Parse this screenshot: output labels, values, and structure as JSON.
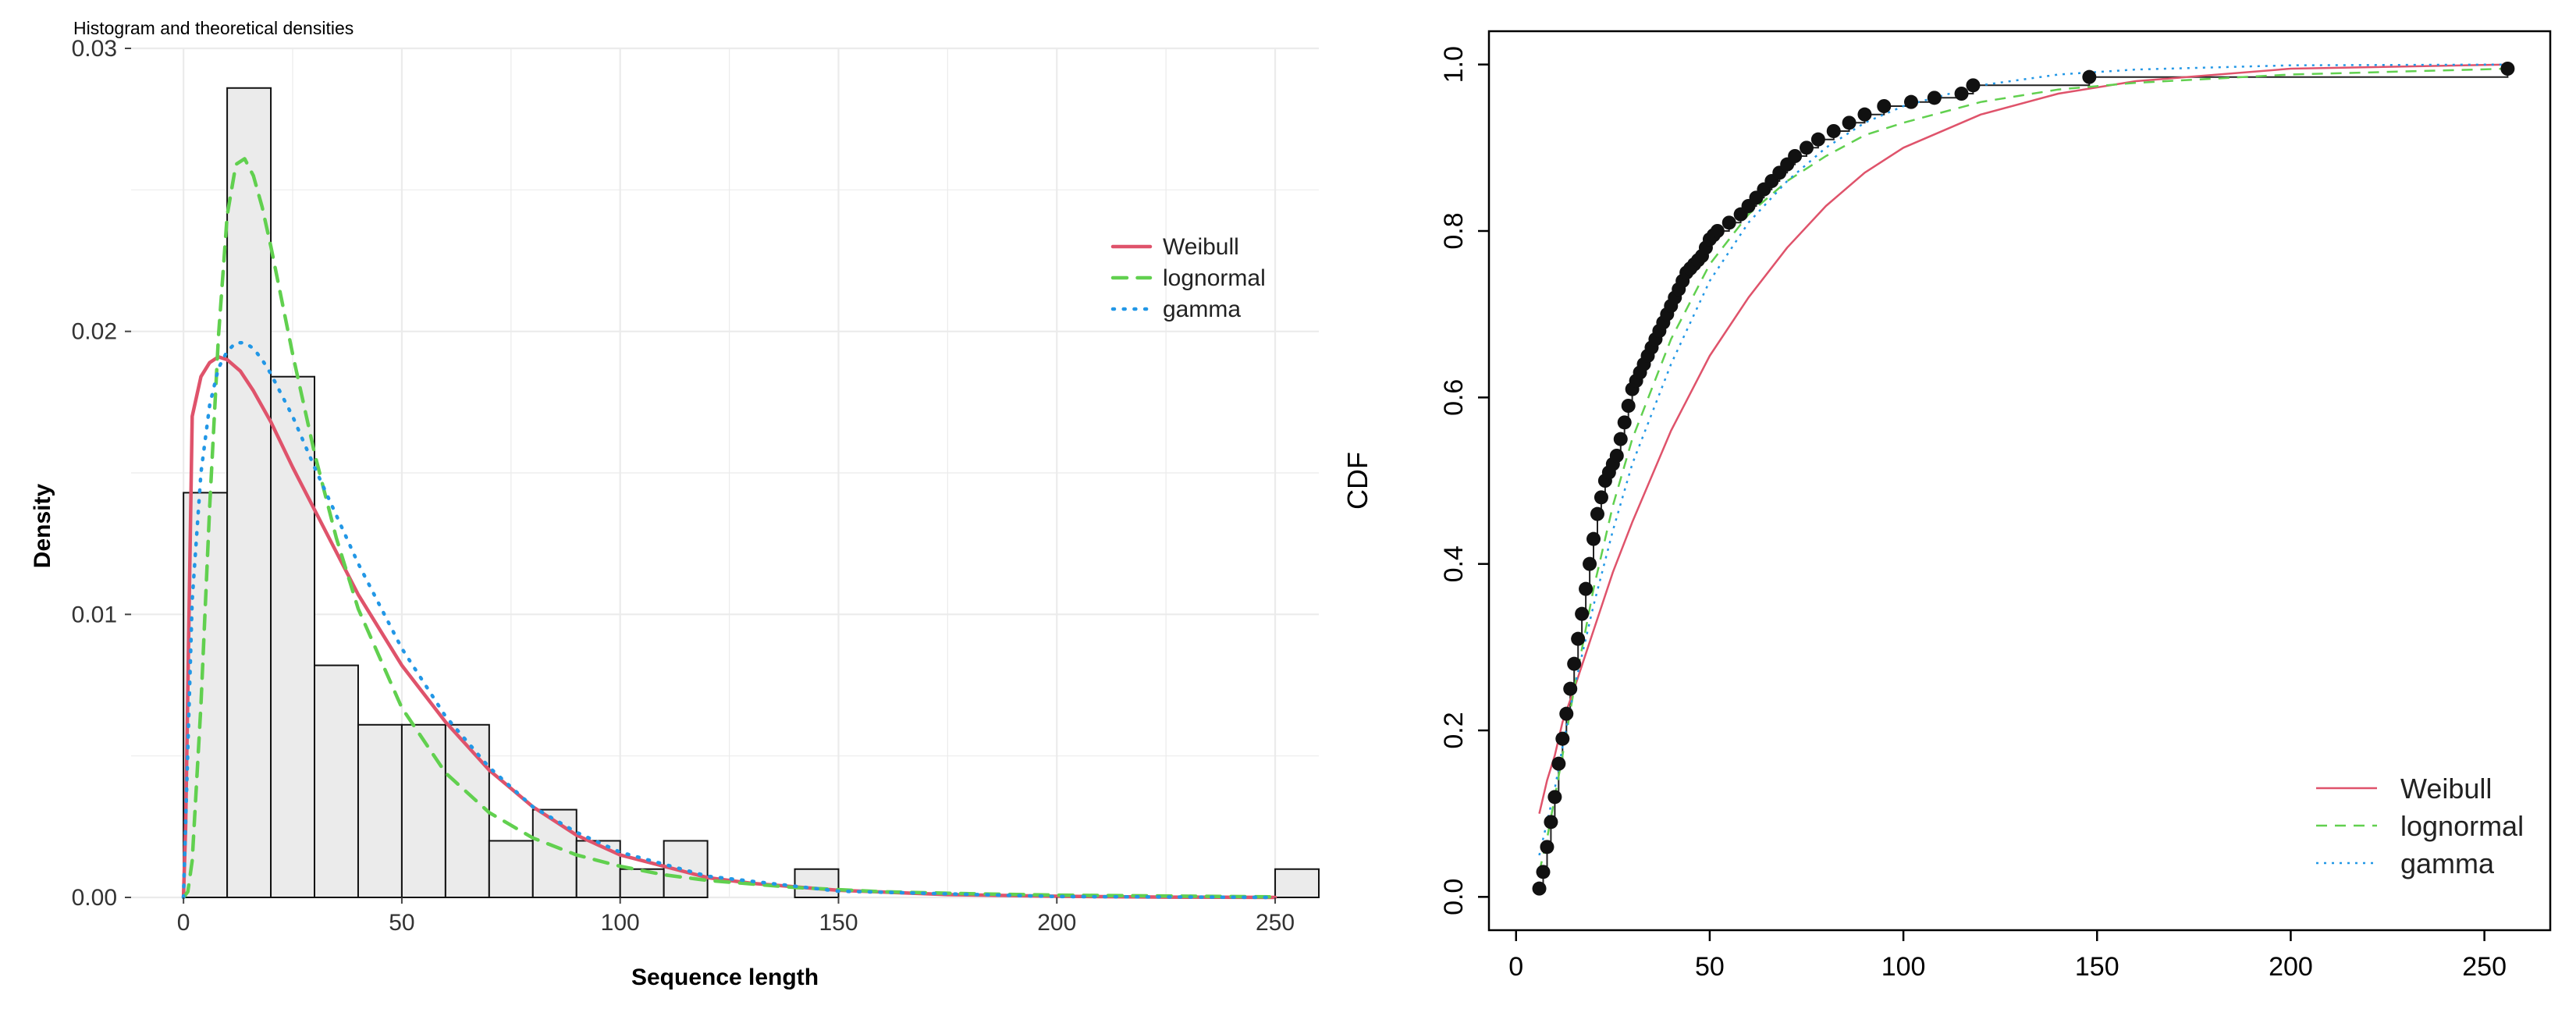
{
  "colors": {
    "weibull": "#df536b",
    "lognormal": "#61d04f",
    "gamma": "#2297e6",
    "bar_fill": "#ebebeb",
    "grid": "#ebebeb"
  },
  "chart_data": [
    {
      "type": "bar",
      "title": "Histogram and theoretical densities",
      "xlabel": "Sequence length",
      "ylabel": "Density",
      "xlim": [
        -12,
        260
      ],
      "ylim": [
        0,
        0.03
      ],
      "x_ticks": [
        0,
        50,
        100,
        150,
        200,
        250
      ],
      "x_tick_labels": [
        "0",
        "50",
        "100",
        "150",
        "200",
        "250"
      ],
      "y_ticks": [
        0,
        0.01,
        0.02,
        0.03
      ],
      "y_tick_labels": [
        "0.00",
        "0.01",
        "0.02",
        "0.03"
      ],
      "grid": true,
      "legend_position": "top-right",
      "bins": [
        {
          "x0": 0,
          "x1": 10,
          "density": 0.0143
        },
        {
          "x0": 10,
          "x1": 20,
          "density": 0.0286
        },
        {
          "x0": 20,
          "x1": 30,
          "density": 0.0184
        },
        {
          "x0": 30,
          "x1": 40,
          "density": 0.0082
        },
        {
          "x0": 40,
          "x1": 50,
          "density": 0.0061
        },
        {
          "x0": 50,
          "x1": 60,
          "density": 0.0061
        },
        {
          "x0": 60,
          "x1": 70,
          "density": 0.0061
        },
        {
          "x0": 70,
          "x1": 80,
          "density": 0.002
        },
        {
          "x0": 80,
          "x1": 90,
          "density": 0.0031
        },
        {
          "x0": 90,
          "x1": 100,
          "density": 0.002
        },
        {
          "x0": 100,
          "x1": 110,
          "density": 0.001
        },
        {
          "x0": 110,
          "x1": 120,
          "density": 0.002
        },
        {
          "x0": 120,
          "x1": 130,
          "density": 0.0
        },
        {
          "x0": 130,
          "x1": 140,
          "density": 0.0
        },
        {
          "x0": 140,
          "x1": 150,
          "density": 0.001
        },
        {
          "x0": 150,
          "x1": 160,
          "density": 0.0
        },
        {
          "x0": 160,
          "x1": 170,
          "density": 0.0
        },
        {
          "x0": 170,
          "x1": 180,
          "density": 0.0
        },
        {
          "x0": 180,
          "x1": 190,
          "density": 0.0
        },
        {
          "x0": 190,
          "x1": 200,
          "density": 0.0
        },
        {
          "x0": 200,
          "x1": 210,
          "density": 0.0
        },
        {
          "x0": 210,
          "x1": 220,
          "density": 0.0
        },
        {
          "x0": 220,
          "x1": 230,
          "density": 0.0
        },
        {
          "x0": 230,
          "x1": 240,
          "density": 0.0
        },
        {
          "x0": 240,
          "x1": 250,
          "density": 0.0
        },
        {
          "x0": 250,
          "x1": 260,
          "density": 0.001
        }
      ],
      "series": [
        {
          "name": "Weibull",
          "color": "#df536b",
          "dash": "solid",
          "x": [
            0,
            0.5,
            2,
            4,
            6,
            8,
            10,
            13,
            16,
            20,
            25,
            30,
            35,
            40,
            50,
            60,
            70,
            80,
            90,
            100,
            110,
            120,
            130,
            150,
            175,
            200,
            225,
            250
          ],
          "y": [
            0,
            0.0025,
            0.017,
            0.0184,
            0.0189,
            0.0191,
            0.019,
            0.0186,
            0.0179,
            0.0168,
            0.0152,
            0.0137,
            0.0122,
            0.0107,
            0.0082,
            0.0062,
            0.0045,
            0.0032,
            0.0022,
            0.0015,
            0.0011,
            0.0007,
            0.0005,
            0.00025,
            0.0001,
            4e-05,
            1e-05,
            0.0
          ]
        },
        {
          "name": "lognormal",
          "color": "#61d04f",
          "dash": "dashed",
          "x": [
            0,
            1,
            2,
            4,
            6,
            8,
            10,
            12,
            14,
            16,
            18,
            20,
            25,
            30,
            35,
            40,
            50,
            60,
            70,
            80,
            90,
            100,
            110,
            120,
            140,
            160,
            180,
            200,
            250
          ],
          "y": [
            0,
            0.0002,
            0.0013,
            0.0068,
            0.0138,
            0.0198,
            0.0241,
            0.0259,
            0.0261,
            0.0255,
            0.0244,
            0.023,
            0.0192,
            0.0157,
            0.0127,
            0.0102,
            0.0067,
            0.0044,
            0.003,
            0.0021,
            0.0015,
            0.0011,
            0.0008,
            0.0006,
            0.00035,
            0.0002,
            0.00013,
            8e-05,
            2e-05
          ]
        },
        {
          "name": "gamma",
          "color": "#2297e6",
          "dash": "dotted",
          "x": [
            0,
            2,
            4,
            6,
            8,
            10,
            12,
            14,
            16,
            18,
            20,
            25,
            30,
            40,
            50,
            60,
            70,
            80,
            90,
            100,
            120,
            150,
            200,
            250
          ],
          "y": [
            0,
            0.0105,
            0.015,
            0.0174,
            0.0187,
            0.0193,
            0.0196,
            0.0196,
            0.0194,
            0.019,
            0.0185,
            0.017,
            0.0152,
            0.0118,
            0.0088,
            0.0064,
            0.0046,
            0.0032,
            0.0023,
            0.0016,
            0.00075,
            0.00022,
            3e-05,
            0.0
          ]
        }
      ]
    },
    {
      "type": "line",
      "title": "",
      "xlabel": "",
      "ylabel": "CDF",
      "xlim": [
        -7,
        267
      ],
      "ylim": [
        -0.04,
        1.04
      ],
      "x_ticks": [
        0,
        50,
        100,
        150,
        200,
        250
      ],
      "x_tick_labels": [
        "0",
        "50",
        "100",
        "150",
        "200",
        "250"
      ],
      "y_ticks": [
        0,
        0.2,
        0.4,
        0.6,
        0.8,
        1.0
      ],
      "y_tick_labels": [
        "0.0",
        "0.2",
        "0.4",
        "0.6",
        "0.8",
        "1.0"
      ],
      "grid": false,
      "legend_position": "bottom-right",
      "empirical_points": {
        "x": [
          6,
          7,
          8,
          9,
          10,
          11,
          12,
          13,
          14,
          15,
          16,
          17,
          18,
          19,
          20,
          21,
          22,
          23,
          24,
          25,
          26,
          27,
          28,
          29,
          30,
          31,
          32,
          33,
          34,
          35,
          36,
          37,
          38,
          39,
          40,
          41,
          42,
          43,
          44,
          45,
          46,
          47,
          48,
          49,
          50,
          51,
          52,
          55,
          58,
          60,
          62,
          64,
          66,
          68,
          70,
          72,
          75,
          78,
          82,
          86,
          90,
          95,
          102,
          108,
          115,
          118,
          148,
          256
        ],
        "y": [
          0.01,
          0.03,
          0.06,
          0.09,
          0.12,
          0.16,
          0.19,
          0.22,
          0.25,
          0.28,
          0.31,
          0.34,
          0.37,
          0.4,
          0.43,
          0.46,
          0.48,
          0.5,
          0.51,
          0.52,
          0.53,
          0.55,
          0.57,
          0.59,
          0.61,
          0.62,
          0.63,
          0.64,
          0.65,
          0.66,
          0.67,
          0.68,
          0.69,
          0.7,
          0.71,
          0.72,
          0.73,
          0.74,
          0.75,
          0.755,
          0.76,
          0.765,
          0.77,
          0.78,
          0.79,
          0.795,
          0.8,
          0.81,
          0.82,
          0.83,
          0.84,
          0.85,
          0.86,
          0.87,
          0.88,
          0.89,
          0.9,
          0.91,
          0.92,
          0.93,
          0.94,
          0.95,
          0.955,
          0.96,
          0.965,
          0.975,
          0.985,
          0.995
        ]
      },
      "series": [
        {
          "name": "Weibull",
          "color": "#df536b",
          "dash": "solid",
          "x": [
            6,
            8,
            10,
            12,
            15,
            20,
            25,
            30,
            40,
            50,
            60,
            70,
            80,
            90,
            100,
            120,
            140,
            160,
            200,
            256
          ],
          "y": [
            0.1,
            0.14,
            0.17,
            0.21,
            0.25,
            0.32,
            0.39,
            0.45,
            0.56,
            0.65,
            0.72,
            0.78,
            0.83,
            0.87,
            0.9,
            0.94,
            0.965,
            0.98,
            0.995,
            1.0
          ]
        },
        {
          "name": "lognormal",
          "color": "#61d04f",
          "dash": "dashed",
          "x": [
            6,
            8,
            10,
            12,
            15,
            20,
            25,
            30,
            40,
            50,
            60,
            70,
            80,
            90,
            100,
            120,
            140,
            160,
            200,
            256
          ],
          "y": [
            0.03,
            0.07,
            0.12,
            0.17,
            0.25,
            0.37,
            0.47,
            0.55,
            0.67,
            0.76,
            0.82,
            0.86,
            0.89,
            0.915,
            0.93,
            0.955,
            0.97,
            0.978,
            0.988,
            0.995
          ]
        },
        {
          "name": "gamma",
          "color": "#2297e6",
          "dash": "dotted",
          "x": [
            6,
            8,
            10,
            12,
            15,
            20,
            25,
            30,
            40,
            50,
            60,
            70,
            80,
            90,
            100,
            120,
            140,
            160,
            200,
            256
          ],
          "y": [
            0.05,
            0.09,
            0.13,
            0.18,
            0.25,
            0.35,
            0.44,
            0.52,
            0.64,
            0.74,
            0.81,
            0.86,
            0.9,
            0.93,
            0.95,
            0.975,
            0.988,
            0.994,
            0.999,
            1.0
          ]
        }
      ]
    }
  ]
}
